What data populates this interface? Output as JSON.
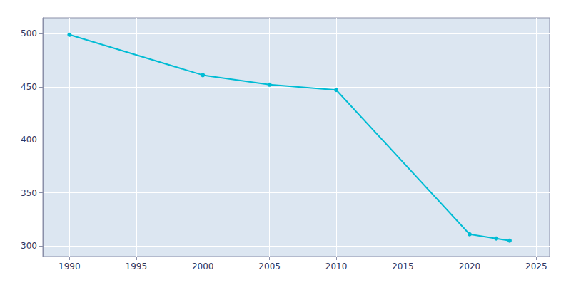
{
  "chart_data": {
    "type": "line",
    "x": [
      1990,
      2000,
      2005,
      2010,
      2020,
      2022,
      2023
    ],
    "values": [
      499,
      461,
      452,
      447,
      311,
      307,
      305
    ],
    "color": "#00BCD4",
    "marker": "circle",
    "xlim": [
      1988,
      2026
    ],
    "ylim": [
      290,
      515
    ],
    "xticks": [
      1990,
      1995,
      2000,
      2005,
      2010,
      2015,
      2020,
      2025
    ],
    "yticks": [
      300,
      350,
      400,
      450,
      500
    ],
    "grid": true
  }
}
